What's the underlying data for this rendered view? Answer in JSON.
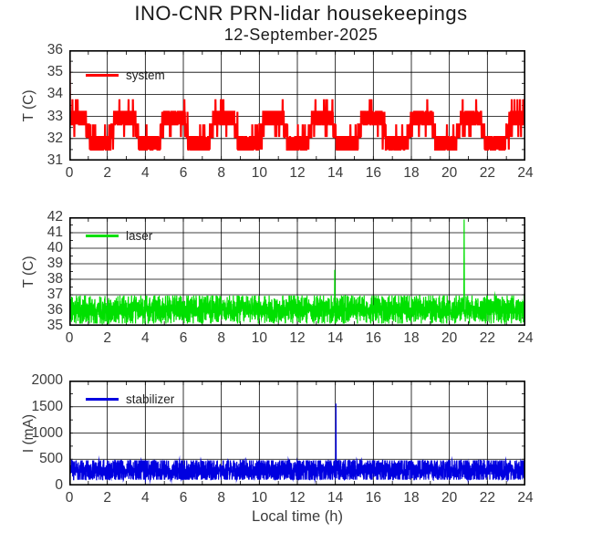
{
  "page": {
    "title": "INO-CNR PRN-lidar housekeepings",
    "subtitle": "12-September-2025",
    "xlabel": "Local time (h)",
    "background": "#ffffff",
    "axis_color": "#000000",
    "grid": true,
    "legend_position": "top-left"
  },
  "chart_data": [
    {
      "type": "line",
      "legend": "system",
      "color": "#ff0000",
      "ylabel": "T (C)",
      "xlim": [
        0,
        24
      ],
      "ylim": [
        31,
        36
      ],
      "xticks": [
        0,
        2,
        4,
        6,
        8,
        10,
        12,
        14,
        16,
        18,
        20,
        22,
        24
      ],
      "yticks": [
        31,
        32,
        33,
        34,
        35,
        36
      ],
      "x_minor_step": 1,
      "y_minor_step": 0.5,
      "line_width": 2.2,
      "series": {
        "kind": "quantized-band",
        "seed": 7,
        "points_per_hour": 110,
        "levels": [
          31.5,
          32.07,
          32.64,
          33.21,
          33.78
        ],
        "cycle_period_h": 2.6,
        "cycle_phase": 0.8,
        "band_min": 31.5,
        "band_max": 33.8,
        "events": [
          {
            "x": 0.02,
            "peak": 35.9
          }
        ]
      }
    },
    {
      "type": "line",
      "legend": "laser",
      "color": "#00e000",
      "ylabel": "T (C)",
      "xlim": [
        0,
        24
      ],
      "ylim": [
        35,
        42
      ],
      "xticks": [
        0,
        2,
        4,
        6,
        8,
        10,
        12,
        14,
        16,
        18,
        20,
        22,
        24
      ],
      "yticks": [
        35,
        36,
        37,
        38,
        39,
        40,
        41,
        42
      ],
      "x_minor_step": 1,
      "y_minor_step": 0.5,
      "line_width": 1.2,
      "series": {
        "kind": "noise-band",
        "seed": 11,
        "points_per_hour": 130,
        "center": 36.05,
        "spread": 1.15,
        "clip": [
          35.15,
          36.95
        ],
        "band_min": 35.15,
        "band_max": 36.95,
        "events": [
          {
            "x": 13.97,
            "peak": 38.6
          },
          {
            "x": 20.78,
            "peak": 41.85
          }
        ]
      }
    },
    {
      "type": "line",
      "legend": "stabilizer",
      "color": "#0000e0",
      "ylabel": "I (mA)",
      "xlim": [
        0,
        24
      ],
      "ylim": [
        0,
        2000
      ],
      "xticks": [
        0,
        2,
        4,
        6,
        8,
        10,
        12,
        14,
        16,
        18,
        20,
        22,
        24
      ],
      "yticks": [
        0,
        500,
        1000,
        1500,
        2000
      ],
      "x_minor_step": 1,
      "y_minor_step": 250,
      "line_width": 1.2,
      "series": {
        "kind": "noise-band",
        "seed": 23,
        "points_per_hour": 130,
        "center": 292,
        "spread": 300,
        "clip": [
          110,
          478
        ],
        "band_min": 110,
        "band_max": 478,
        "events": [
          {
            "x": 14.03,
            "peak": 1560
          }
        ]
      }
    }
  ]
}
